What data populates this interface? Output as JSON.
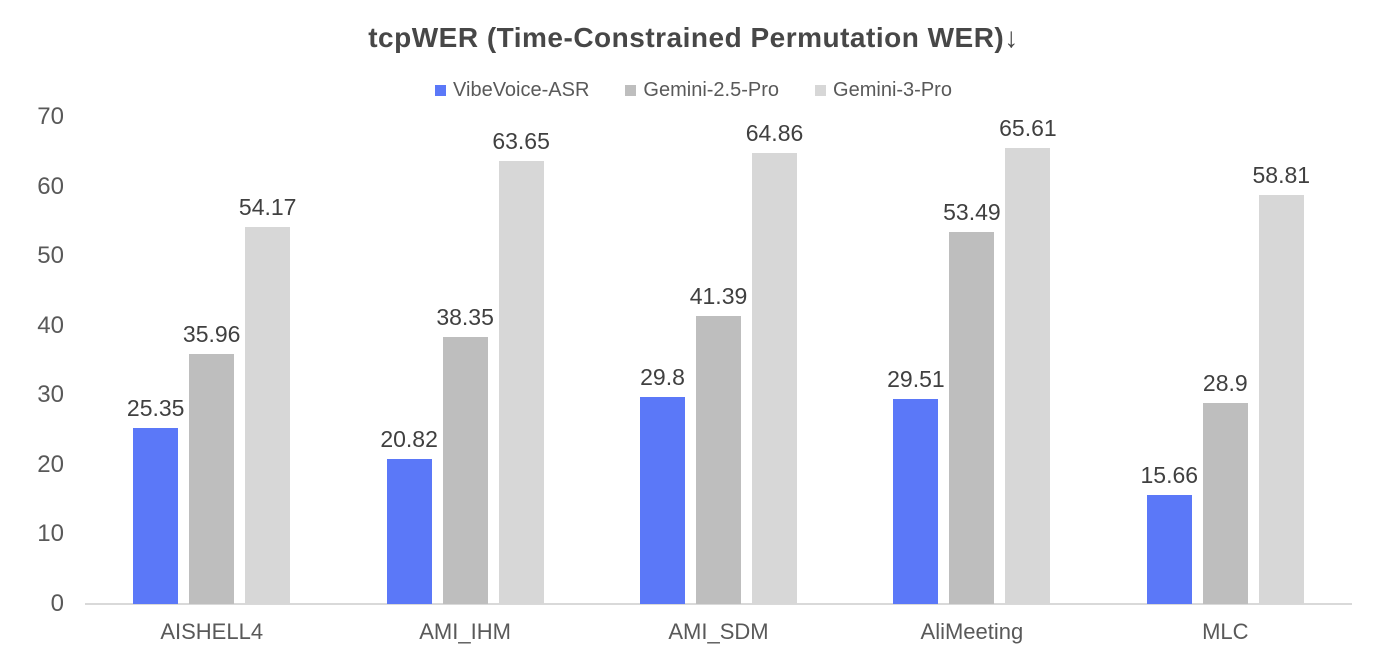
{
  "chart_data": {
    "type": "bar",
    "title": "tcpWER (Time-Constrained Permutation WER)↓",
    "categories": [
      "AISHELL4",
      "AMI_IHM",
      "AMI_SDM",
      "AliMeeting",
      "MLC"
    ],
    "series": [
      {
        "name": "VibeVoice-ASR",
        "color": "#5B78F8",
        "values": [
          25.35,
          20.82,
          29.8,
          29.51,
          15.66
        ]
      },
      {
        "name": "Gemini-2.5-Pro",
        "color": "#BEBEBE",
        "values": [
          35.96,
          38.35,
          41.39,
          53.49,
          28.9
        ]
      },
      {
        "name": "Gemini-3-Pro",
        "color": "#D7D7D7",
        "values": [
          54.17,
          63.65,
          64.86,
          65.61,
          58.81
        ]
      }
    ],
    "ylim": [
      0,
      70
    ],
    "yticks": [
      0,
      10,
      20,
      30,
      40,
      50,
      60,
      70
    ],
    "grid": false,
    "legend_position": "top",
    "value_labels": true
  },
  "colors": {
    "title_text": "#474747",
    "axis_text": "#595959",
    "value_label_text": "#404040",
    "baseline": "#D9D9D9",
    "background": "#FFFFFF"
  }
}
